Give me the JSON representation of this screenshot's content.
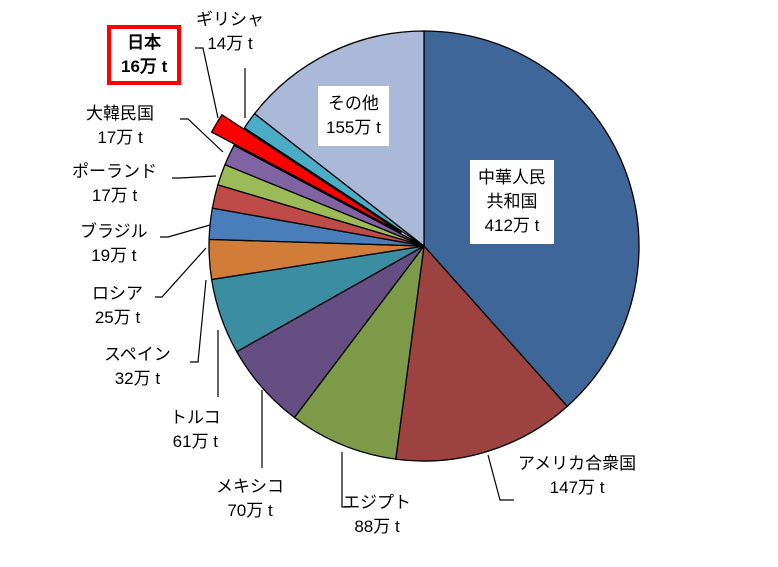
{
  "chart_data": {
    "type": "pie",
    "title": "",
    "unit": "万 t",
    "center": [
      424,
      246
    ],
    "radius": 215,
    "start_angle_deg": 0,
    "direction": "clockwise",
    "slices": [
      {
        "name": "中華人民共和国",
        "value": 412,
        "label_line1": "中華人民",
        "label_line2": "共和国",
        "value_label": "412万 t",
        "color": "#3E6699"
      },
      {
        "name": "アメリカ合衆国",
        "value": 147,
        "label_line1": "アメリカ合衆国",
        "value_label": "147万 t",
        "color": "#9C4341"
      },
      {
        "name": "エジプト",
        "value": 88,
        "label_line1": "エジプト",
        "value_label": "88万 t",
        "color": "#7D9A48"
      },
      {
        "name": "メキシコ",
        "value": 70,
        "label_line1": "メキシコ",
        "value_label": "70万 t",
        "color": "#654F82"
      },
      {
        "name": "トルコ",
        "value": 61,
        "label_line1": "トルコ",
        "value_label": "61万 t",
        "color": "#3B8DA1"
      },
      {
        "name": "スペイン",
        "value": 32,
        "label_line1": "スペイン",
        "value_label": "32万 t",
        "color": "#D17D39"
      },
      {
        "name": "ロシア",
        "value": 25,
        "label_line1": "ロシア",
        "value_label": "25万 t",
        "color": "#4A7EBB"
      },
      {
        "name": "ブラジル",
        "value": 19,
        "label_line1": "ブラジル",
        "value_label": "19万 t",
        "color": "#BE4B48"
      },
      {
        "name": "ポーランド",
        "value": 17,
        "label_line1": "ポーランド",
        "value_label": "17万 t",
        "color": "#9BBB59"
      },
      {
        "name": "大韓民国",
        "value": 17,
        "label_line1": "大韓民国",
        "value_label": "17万 t",
        "color": "#7F63A3"
      },
      {
        "name": "日本",
        "value": 16,
        "label_line1": "日本",
        "value_label": "16万 t",
        "color": "#FF0000",
        "exploded": true,
        "highlighted": true
      },
      {
        "name": "ギリシャ",
        "value": 14,
        "label_line1": "ギリシャ",
        "value_label": "14万 t",
        "color": "#4BACC6"
      },
      {
        "name": "その他",
        "value": 155,
        "label_line1": "その他",
        "value_label": "155万 t",
        "color": "#A9B9D7"
      }
    ],
    "legend": "none",
    "grid": false
  },
  "labels": {
    "china": {
      "l1": "中華人民",
      "l2": "共和国",
      "v": "412万 t"
    },
    "usa": {
      "l1": "アメリカ合衆国",
      "v": "147万 t"
    },
    "egypt": {
      "l1": "エジプト",
      "v": "88万 t"
    },
    "mexico": {
      "l1": "メキシコ",
      "v": "70万 t"
    },
    "turkey": {
      "l1": "トルコ",
      "v": "61万 t"
    },
    "spain": {
      "l1": "スペイン",
      "v": "32万 t"
    },
    "russia": {
      "l1": "ロシア",
      "v": "25万 t"
    },
    "brazil": {
      "l1": "ブラジル",
      "v": "19万 t"
    },
    "poland": {
      "l1": "ポーランド",
      "v": "17万 t"
    },
    "korea": {
      "l1": "大韓民国",
      "v": "17万 t"
    },
    "japan": {
      "l1": "日本",
      "v": "16万 t"
    },
    "greece": {
      "l1": "ギリシャ",
      "v": "14万 t"
    },
    "other": {
      "l1": "その他",
      "v": "155万 t"
    }
  }
}
